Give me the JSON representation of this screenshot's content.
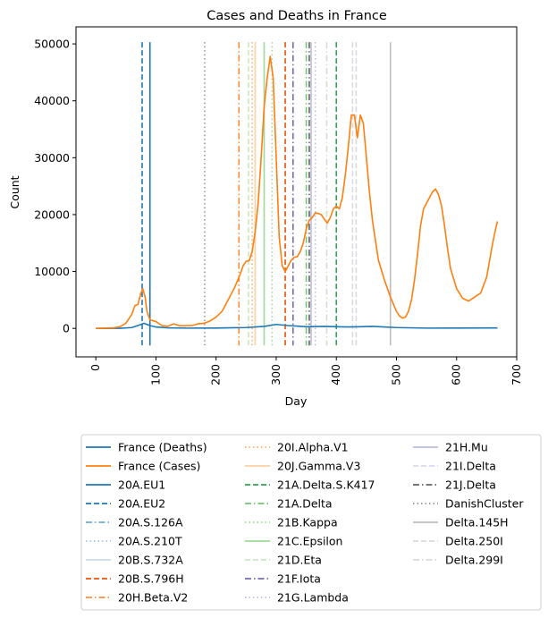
{
  "chart_data": {
    "type": "line",
    "title": "Cases and Deaths in France",
    "xlabel": "Day",
    "ylabel": "Count",
    "xlim": [
      -33,
      700
    ],
    "ylim": [
      -5000,
      53000
    ],
    "xticks": [
      0,
      100,
      200,
      300,
      400,
      500,
      600,
      700
    ],
    "xtick_labels": [
      "0",
      "100",
      "200",
      "300",
      "400",
      "500",
      "600",
      "700"
    ],
    "yticks": [
      0,
      10000,
      20000,
      30000,
      40000,
      50000
    ],
    "ytick_labels": [
      "0",
      "10000",
      "20000",
      "30000",
      "40000",
      "50000"
    ],
    "grid": false,
    "legend_placement": "below plot, 3 columns",
    "series": [
      {
        "name": "France (Deaths)",
        "color": "#1f77b4",
        "x": [
          0,
          40,
          60,
          70,
          80,
          90,
          100,
          120,
          150,
          200,
          250,
          280,
          300,
          320,
          350,
          380,
          400,
          420,
          440,
          460,
          500,
          550,
          600,
          650,
          668
        ],
        "y": [
          0,
          20,
          150,
          500,
          900,
          500,
          250,
          100,
          50,
          60,
          150,
          350,
          700,
          500,
          300,
          350,
          300,
          250,
          300,
          350,
          150,
          50,
          60,
          80,
          80
        ]
      },
      {
        "name": "France (Cases)",
        "color": "#ff7f0e",
        "x": [
          0,
          30,
          40,
          50,
          60,
          65,
          70,
          75,
          78,
          82,
          85,
          90,
          100,
          110,
          120,
          130,
          140,
          150,
          160,
          170,
          180,
          190,
          200,
          210,
          220,
          230,
          240,
          245,
          250,
          255,
          260,
          265,
          270,
          275,
          280,
          285,
          290,
          295,
          300,
          305,
          310,
          315,
          320,
          325,
          330,
          335,
          340,
          345,
          350,
          355,
          360,
          365,
          370,
          375,
          380,
          385,
          390,
          395,
          400,
          405,
          410,
          415,
          420,
          425,
          430,
          435,
          440,
          445,
          450,
          455,
          460,
          470,
          480,
          490,
          500,
          505,
          510,
          515,
          520,
          525,
          530,
          535,
          540,
          545,
          550,
          555,
          560,
          565,
          570,
          575,
          580,
          585,
          590,
          600,
          610,
          620,
          630,
          640,
          650,
          655,
          660,
          665,
          668
        ],
        "y": [
          0,
          100,
          300,
          900,
          2500,
          4000,
          4200,
          6200,
          7000,
          5500,
          3000,
          1500,
          1200,
          500,
          400,
          800,
          450,
          500,
          500,
          800,
          900,
          1300,
          2000,
          3000,
          5000,
          7000,
          9500,
          11000,
          11800,
          11900,
          13500,
          17000,
          22000,
          30000,
          39000,
          44000,
          47800,
          44000,
          30000,
          16000,
          11000,
          10000,
          11000,
          12000,
          12500,
          12600,
          13500,
          15000,
          17500,
          19000,
          19500,
          20300,
          20200,
          20000,
          19200,
          18500,
          19500,
          21000,
          21500,
          21000,
          23000,
          27000,
          32000,
          37500,
          37500,
          33500,
          37500,
          36000,
          30000,
          24000,
          19000,
          12000,
          8500,
          5500,
          3000,
          2200,
          1800,
          2000,
          3000,
          5000,
          8500,
          13000,
          18000,
          21000,
          22000,
          23000,
          24000,
          24500,
          23500,
          21500,
          18000,
          14000,
          10500,
          7000,
          5300,
          4800,
          5500,
          6200,
          9000,
          12000,
          15000,
          17500,
          18800
        ]
      }
    ],
    "vlines": [
      {
        "name": "20A.EU1",
        "x": 90,
        "color": "#1f77b4",
        "style": "solid"
      },
      {
        "name": "20A.EU2",
        "x": 77,
        "color": "#1f77b4",
        "style": "dashed"
      },
      {
        "name": "20A.S.126A",
        "x": 0,
        "color": "#6baed6",
        "style": "dashdot",
        "drawn": false
      },
      {
        "name": "20A.S.210T",
        "x": 0,
        "color": "#9ecae1",
        "style": "dotted",
        "drawn": false
      },
      {
        "name": "20B.S.732A",
        "x": 0,
        "color": "#c6dbef",
        "style": "solid",
        "drawn": false
      },
      {
        "name": "20B.S.796H",
        "x": 315,
        "color": "#e6550d",
        "style": "dashed"
      },
      {
        "name": "20H.Beta.V2",
        "x": 238,
        "color": "#fd8d3c",
        "style": "dashdot"
      },
      {
        "name": "20I.Alpha.V1",
        "x": 260,
        "color": "#fdae6b",
        "style": "dotted"
      },
      {
        "name": "20J.Gamma.V3",
        "x": 265,
        "color": "#fdd0a2",
        "style": "solid"
      },
      {
        "name": "21A.Delta.S.K417",
        "x": 400,
        "color": "#31a354",
        "style": "dashed"
      },
      {
        "name": "21A.Delta",
        "x": 350,
        "color": "#74c476",
        "style": "dashdot"
      },
      {
        "name": "21B.Kappa",
        "x": 293,
        "color": "#a1d99b",
        "style": "dotted"
      },
      {
        "name": "21C.Epsilon",
        "x": 280,
        "color": "#a1d99b",
        "style": "solid"
      },
      {
        "name": "21D.Eta",
        "x": 254,
        "color": "#c7e9c0",
        "style": "dashed"
      },
      {
        "name": "21F.Iota",
        "x": 328,
        "color": "#756bb1",
        "style": "dashdot"
      },
      {
        "name": "21G.Lambda",
        "x": 365,
        "color": "#bcbddc",
        "style": "dotted"
      },
      {
        "name": "21H.Mu",
        "x": 358,
        "color": "#bcbddc",
        "style": "solid"
      },
      {
        "name": "21I.Delta",
        "x": 427,
        "color": "#dadaeb",
        "style": "dashed"
      },
      {
        "name": "21J.Delta",
        "x": 355,
        "color": "#636363",
        "style": "dashdot"
      },
      {
        "name": "DanishCluster",
        "x": 181,
        "color": "#969696",
        "style": "dotted"
      },
      {
        "name": "Delta.145H",
        "x": 490,
        "color": "#bdbdbd",
        "style": "solid"
      },
      {
        "name": "Delta.250I",
        "x": 433,
        "color": "#d9d9d9",
        "style": "dashed"
      },
      {
        "name": "Delta.299I",
        "x": 384,
        "color": "#d9d9d9",
        "style": "dashdot"
      }
    ]
  }
}
